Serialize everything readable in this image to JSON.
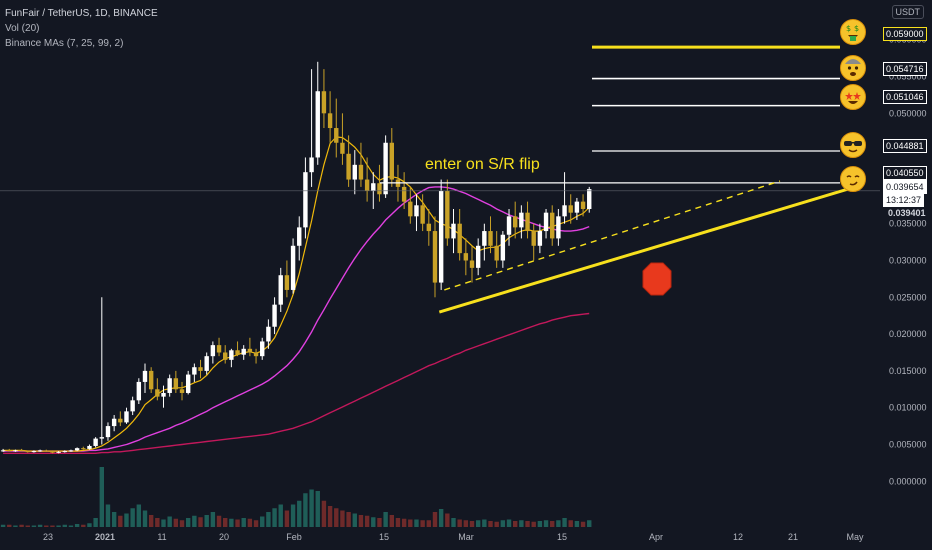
{
  "legend": {
    "symbol": "FunFair / TetherUS, 1D, BINANCE",
    "volume": "Vol (20)",
    "mas": "Binance MAs (7, 25, 99, 2)"
  },
  "currency": "USDT",
  "annotation": "enter on S/R flip",
  "price_labels": {
    "target_1": "0.059000",
    "target_2": "0.054716",
    "target_3": "0.051046",
    "target_4": "0.044881",
    "resistance": "0.040550",
    "last_price": "0.039654",
    "countdown": "13:12:37",
    "ma_value": "0.039401"
  },
  "colors": {
    "background": "#131722",
    "bull": "#ffffff",
    "bear": "#c9a227",
    "ma7": "#f0b90b",
    "ma25": "#e040e0",
    "ma99": "#c2185b",
    "trendline": "#f7e01d",
    "stop": "#e8391d"
  },
  "chart_data": {
    "type": "candlestick",
    "x_ticks": [
      "23",
      "2021",
      "11",
      "20",
      "Feb",
      "15",
      "Mar",
      "15",
      "Apr",
      "12",
      "21",
      "May"
    ],
    "y_ticks": [
      "0.060000",
      "0.055000",
      "0.050000",
      "0.045000",
      "0.040000",
      "0.035000",
      "0.030000",
      "0.025000",
      "0.020000",
      "0.015000",
      "0.010000",
      "0.005000",
      "0.000000"
    ],
    "y_range": [
      -0.002,
      0.062
    ],
    "candles": [
      [
        0.0041,
        0.0044,
        0.004,
        0.0042
      ],
      [
        0.0042,
        0.0044,
        0.0041,
        0.0041
      ],
      [
        0.0041,
        0.0043,
        0.004,
        0.0042
      ],
      [
        0.0042,
        0.0044,
        0.0041,
        0.0041
      ],
      [
        0.0041,
        0.0042,
        0.0039,
        0.004
      ],
      [
        0.004,
        0.0042,
        0.0039,
        0.0041
      ],
      [
        0.0041,
        0.0043,
        0.004,
        0.0042
      ],
      [
        0.0042,
        0.0043,
        0.004,
        0.0041
      ],
      [
        0.0041,
        0.0042,
        0.0038,
        0.0039
      ],
      [
        0.0039,
        0.0041,
        0.0038,
        0.004
      ],
      [
        0.004,
        0.0042,
        0.0039,
        0.0041
      ],
      [
        0.0041,
        0.0043,
        0.004,
        0.0042
      ],
      [
        0.0042,
        0.0046,
        0.0041,
        0.0045
      ],
      [
        0.0045,
        0.0047,
        0.0043,
        0.0044
      ],
      [
        0.0044,
        0.005,
        0.0043,
        0.0048
      ],
      [
        0.0048,
        0.006,
        0.0046,
        0.0058
      ],
      [
        0.0058,
        0.025,
        0.005,
        0.006
      ],
      [
        0.006,
        0.008,
        0.0055,
        0.0075
      ],
      [
        0.0075,
        0.009,
        0.0068,
        0.0085
      ],
      [
        0.0085,
        0.0095,
        0.0075,
        0.008
      ],
      [
        0.008,
        0.01,
        0.0078,
        0.0095
      ],
      [
        0.0095,
        0.0115,
        0.009,
        0.011
      ],
      [
        0.011,
        0.014,
        0.0105,
        0.0135
      ],
      [
        0.0135,
        0.016,
        0.012,
        0.015
      ],
      [
        0.015,
        0.0155,
        0.012,
        0.0125
      ],
      [
        0.0125,
        0.014,
        0.011,
        0.0115
      ],
      [
        0.0115,
        0.013,
        0.01,
        0.012
      ],
      [
        0.012,
        0.0145,
        0.0115,
        0.014
      ],
      [
        0.014,
        0.015,
        0.012,
        0.0125
      ],
      [
        0.0125,
        0.0135,
        0.011,
        0.012
      ],
      [
        0.012,
        0.015,
        0.0118,
        0.0145
      ],
      [
        0.0145,
        0.016,
        0.0135,
        0.0155
      ],
      [
        0.0155,
        0.0165,
        0.014,
        0.015
      ],
      [
        0.015,
        0.0175,
        0.0145,
        0.017
      ],
      [
        0.017,
        0.019,
        0.016,
        0.0185
      ],
      [
        0.0185,
        0.0195,
        0.017,
        0.0175
      ],
      [
        0.0175,
        0.0185,
        0.016,
        0.0165
      ],
      [
        0.0165,
        0.018,
        0.0155,
        0.0178
      ],
      [
        0.0178,
        0.019,
        0.017,
        0.0172
      ],
      [
        0.0172,
        0.0185,
        0.0165,
        0.018
      ],
      [
        0.018,
        0.0195,
        0.017,
        0.0175
      ],
      [
        0.0175,
        0.018,
        0.016,
        0.017
      ],
      [
        0.017,
        0.0195,
        0.0165,
        0.019
      ],
      [
        0.019,
        0.022,
        0.018,
        0.021
      ],
      [
        0.021,
        0.025,
        0.02,
        0.024
      ],
      [
        0.024,
        0.029,
        0.023,
        0.028
      ],
      [
        0.028,
        0.03,
        0.025,
        0.026
      ],
      [
        0.026,
        0.033,
        0.0255,
        0.032
      ],
      [
        0.032,
        0.036,
        0.03,
        0.0345
      ],
      [
        0.0345,
        0.044,
        0.033,
        0.042
      ],
      [
        0.042,
        0.056,
        0.04,
        0.044
      ],
      [
        0.044,
        0.057,
        0.043,
        0.053
      ],
      [
        0.053,
        0.056,
        0.048,
        0.05
      ],
      [
        0.05,
        0.053,
        0.046,
        0.048
      ],
      [
        0.048,
        0.052,
        0.044,
        0.046
      ],
      [
        0.046,
        0.05,
        0.043,
        0.0445
      ],
      [
        0.0445,
        0.047,
        0.04,
        0.041
      ],
      [
        0.041,
        0.045,
        0.039,
        0.043
      ],
      [
        0.043,
        0.046,
        0.04,
        0.041
      ],
      [
        0.041,
        0.044,
        0.038,
        0.0395
      ],
      [
        0.0395,
        0.042,
        0.037,
        0.0405
      ],
      [
        0.0405,
        0.043,
        0.038,
        0.039
      ],
      [
        0.039,
        0.047,
        0.0385,
        0.046
      ],
      [
        0.046,
        0.048,
        0.04,
        0.041
      ],
      [
        0.041,
        0.043,
        0.038,
        0.04
      ],
      [
        0.04,
        0.042,
        0.037,
        0.038
      ],
      [
        0.038,
        0.04,
        0.035,
        0.036
      ],
      [
        0.036,
        0.039,
        0.034,
        0.0375
      ],
      [
        0.0375,
        0.039,
        0.034,
        0.035
      ],
      [
        0.035,
        0.037,
        0.032,
        0.034
      ],
      [
        0.034,
        0.036,
        0.025,
        0.027
      ],
      [
        0.027,
        0.041,
        0.026,
        0.0395
      ],
      [
        0.0395,
        0.041,
        0.032,
        0.033
      ],
      [
        0.033,
        0.037,
        0.031,
        0.035
      ],
      [
        0.035,
        0.037,
        0.03,
        0.031
      ],
      [
        0.031,
        0.033,
        0.028,
        0.03
      ],
      [
        0.03,
        0.032,
        0.027,
        0.029
      ],
      [
        0.029,
        0.033,
        0.028,
        0.032
      ],
      [
        0.032,
        0.035,
        0.03,
        0.034
      ],
      [
        0.034,
        0.036,
        0.031,
        0.032
      ],
      [
        0.032,
        0.034,
        0.029,
        0.03
      ],
      [
        0.03,
        0.034,
        0.029,
        0.0335
      ],
      [
        0.0335,
        0.037,
        0.032,
        0.036
      ],
      [
        0.036,
        0.038,
        0.033,
        0.0345
      ],
      [
        0.0345,
        0.0375,
        0.033,
        0.0365
      ],
      [
        0.0365,
        0.038,
        0.033,
        0.034
      ],
      [
        0.034,
        0.035,
        0.03,
        0.032
      ],
      [
        0.032,
        0.035,
        0.031,
        0.034
      ],
      [
        0.034,
        0.037,
        0.033,
        0.0365
      ],
      [
        0.0365,
        0.0375,
        0.032,
        0.033
      ],
      [
        0.033,
        0.037,
        0.032,
        0.036
      ],
      [
        0.036,
        0.042,
        0.035,
        0.0375
      ],
      [
        0.0375,
        0.039,
        0.035,
        0.0365
      ],
      [
        0.0365,
        0.0385,
        0.0355,
        0.038
      ],
      [
        0.038,
        0.039,
        0.036,
        0.037
      ],
      [
        0.037,
        0.04,
        0.0365,
        0.0397
      ]
    ],
    "volumes": [
      0.3,
      0.3,
      0.2,
      0.3,
      0.2,
      0.2,
      0.3,
      0.2,
      0.2,
      0.2,
      0.3,
      0.2,
      0.4,
      0.3,
      0.5,
      1.2,
      8.0,
      3.0,
      2.0,
      1.5,
      1.8,
      2.5,
      3.0,
      2.2,
      1.6,
      1.2,
      1.0,
      1.4,
      1.1,
      0.9,
      1.2,
      1.5,
      1.3,
      1.6,
      2.0,
      1.5,
      1.2,
      1.1,
      1.0,
      1.2,
      1.1,
      0.9,
      1.4,
      2.0,
      2.5,
      3.0,
      2.2,
      3.0,
      3.5,
      4.5,
      5.0,
      4.8,
      3.5,
      2.8,
      2.5,
      2.2,
      2.0,
      1.8,
      1.6,
      1.5,
      1.3,
      1.2,
      2.0,
      1.6,
      1.2,
      1.1,
      1.0,
      1.0,
      0.9,
      0.9,
      2.0,
      2.4,
      1.8,
      1.2,
      1.0,
      0.9,
      0.8,
      0.9,
      1.0,
      0.8,
      0.7,
      0.9,
      1.0,
      0.8,
      0.9,
      0.8,
      0.7,
      0.8,
      0.9,
      0.8,
      0.9,
      1.2,
      0.9,
      0.8,
      0.7,
      0.9
    ],
    "ma7": [
      0.0042,
      0.0042,
      0.0042,
      0.0042,
      0.0041,
      0.0041,
      0.0041,
      0.0041,
      0.0041,
      0.0041,
      0.0041,
      0.0041,
      0.0041,
      0.0042,
      0.0043,
      0.0045,
      0.0048,
      0.0053,
      0.0059,
      0.0065,
      0.0072,
      0.0081,
      0.0091,
      0.0104,
      0.0111,
      0.0118,
      0.0124,
      0.0126,
      0.0127,
      0.0127,
      0.013,
      0.0134,
      0.0137,
      0.0144,
      0.0154,
      0.0162,
      0.0167,
      0.0169,
      0.0172,
      0.0175,
      0.0176,
      0.0174,
      0.0177,
      0.0184,
      0.0195,
      0.0212,
      0.0231,
      0.0254,
      0.0282,
      0.0318,
      0.0354,
      0.0395,
      0.043,
      0.0459,
      0.0468,
      0.0467,
      0.0461,
      0.0454,
      0.0444,
      0.043,
      0.0417,
      0.0409,
      0.0413,
      0.0414,
      0.0412,
      0.0407,
      0.04,
      0.0389,
      0.0379,
      0.0367,
      0.0355,
      0.035,
      0.0347,
      0.0342,
      0.0335,
      0.0328,
      0.032,
      0.0313,
      0.0316,
      0.0318,
      0.0318,
      0.0323,
      0.0331,
      0.0336,
      0.034,
      0.0342,
      0.034,
      0.034,
      0.0344,
      0.0346,
      0.0349,
      0.0352,
      0.0355,
      0.036,
      0.0364,
      0.0372
    ],
    "ma25": [
      0.0041,
      0.0041,
      0.0041,
      0.0041,
      0.0041,
      0.0041,
      0.0041,
      0.0041,
      0.0041,
      0.0041,
      0.0041,
      0.0041,
      0.0041,
      0.0041,
      0.0042,
      0.0042,
      0.0043,
      0.0044,
      0.0046,
      0.0048,
      0.005,
      0.0053,
      0.0056,
      0.006,
      0.0063,
      0.0066,
      0.0069,
      0.0072,
      0.0076,
      0.0079,
      0.0083,
      0.0087,
      0.0091,
      0.0095,
      0.01,
      0.0104,
      0.0108,
      0.0112,
      0.0116,
      0.012,
      0.0124,
      0.0128,
      0.0132,
      0.0137,
      0.0143,
      0.015,
      0.0157,
      0.0166,
      0.0176,
      0.0189,
      0.0203,
      0.0219,
      0.0233,
      0.0248,
      0.0262,
      0.0276,
      0.029,
      0.0303,
      0.0315,
      0.0326,
      0.0336,
      0.0345,
      0.0355,
      0.0363,
      0.0371,
      0.0378,
      0.0384,
      0.039,
      0.0395,
      0.0399,
      0.04,
      0.04,
      0.0399,
      0.0397,
      0.0394,
      0.0391,
      0.0387,
      0.0383,
      0.0379,
      0.0375,
      0.037,
      0.0366,
      0.0362,
      0.0359,
      0.0356,
      0.0353,
      0.035,
      0.0347,
      0.0345,
      0.0343,
      0.0341,
      0.034,
      0.034,
      0.0341,
      0.0343,
      0.0346
    ],
    "ma99": [
      0.0038,
      0.0038,
      0.0038,
      0.0038,
      0.0038,
      0.0038,
      0.0038,
      0.0038,
      0.0038,
      0.0038,
      0.0038,
      0.0038,
      0.0038,
      0.0038,
      0.0038,
      0.0038,
      0.0039,
      0.0039,
      0.004,
      0.004,
      0.0041,
      0.0042,
      0.0043,
      0.0044,
      0.0045,
      0.0046,
      0.0047,
      0.0048,
      0.0049,
      0.005,
      0.0051,
      0.0052,
      0.0053,
      0.0054,
      0.0055,
      0.0056,
      0.0057,
      0.0058,
      0.0059,
      0.006,
      0.0061,
      0.0062,
      0.0063,
      0.0064,
      0.0066,
      0.0068,
      0.007,
      0.0072,
      0.0075,
      0.0078,
      0.0081,
      0.0085,
      0.0089,
      0.0093,
      0.0097,
      0.0101,
      0.0105,
      0.0109,
      0.0113,
      0.0117,
      0.0121,
      0.0125,
      0.0129,
      0.0133,
      0.0137,
      0.0141,
      0.0145,
      0.0149,
      0.0153,
      0.0157,
      0.016,
      0.0164,
      0.0167,
      0.0171,
      0.0174,
      0.0178,
      0.0181,
      0.0184,
      0.0187,
      0.019,
      0.0193,
      0.0196,
      0.0199,
      0.0202,
      0.0205,
      0.0208,
      0.0211,
      0.0214,
      0.0216,
      0.0219,
      0.0221,
      0.0223,
      0.0225,
      0.0226,
      0.0227,
      0.0228
    ],
    "levels": {
      "target_1": 0.059,
      "target_2": 0.054716,
      "target_3": 0.051046,
      "target_4": 0.044881,
      "resistance": 0.04055
    },
    "trendlines": {
      "support": [
        [
          72,
          0.023
        ],
        [
          146,
          0.0402
        ]
      ],
      "dashed": [
        [
          72,
          0.026
        ],
        [
          134,
          0.0408
        ]
      ]
    },
    "grid": false
  }
}
